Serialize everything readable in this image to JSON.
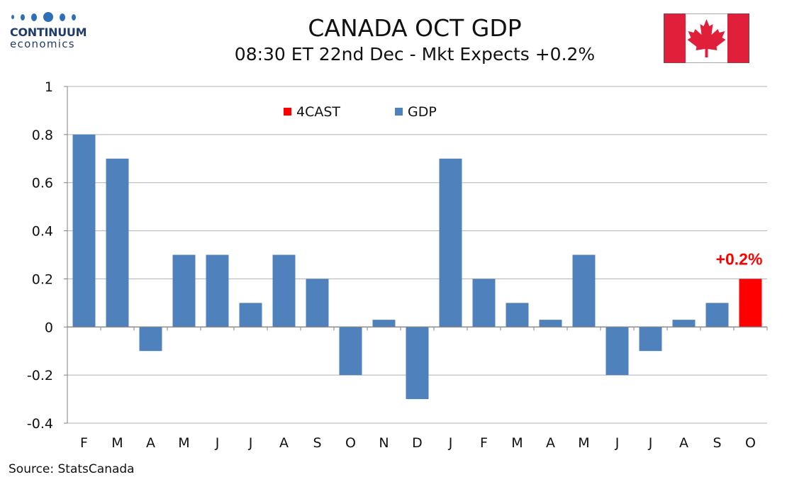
{
  "logo": {
    "brand": "CONTINUUM",
    "sub": "economics"
  },
  "header": {
    "title": "CANADA OCT GDP",
    "subtitle": "08:30 ET 22nd Dec - Mkt Expects +0.2%"
  },
  "flag": {
    "icon": "canada-flag-icon",
    "red": "#e0203a",
    "white": "#ffffff"
  },
  "source": "Source: StatsCanada",
  "colors": {
    "gdp": "#4f81bd",
    "forecast": "#ff0000",
    "grid": "#b0b0b0",
    "axis": "#808080"
  },
  "chart_data": {
    "type": "bar",
    "title": "CANADA OCT GDP",
    "subtitle": "08:30 ET 22nd Dec - Mkt Expects +0.2%",
    "xlabel": "",
    "ylabel": "",
    "ylim": [
      -0.4,
      1
    ],
    "yticks": [
      -0.4,
      -0.2,
      0,
      0.2,
      0.4,
      0.6,
      0.8,
      1
    ],
    "ytick_labels": [
      "-0.4",
      "-0.2",
      "0",
      "0.2",
      "0.4",
      "0.6",
      "0.8",
      "1"
    ],
    "grid": true,
    "legend": {
      "placement": "top-center",
      "entries": [
        "4CAST",
        "GDP"
      ]
    },
    "categories": [
      "F",
      "M",
      "A",
      "M",
      "J",
      "J",
      "A",
      "S",
      "O",
      "N",
      "D",
      "J",
      "F",
      "M",
      "A",
      "M",
      "J",
      "J",
      "A",
      "S",
      "O"
    ],
    "series": [
      {
        "name": "GDP",
        "values": [
          0.8,
          0.7,
          -0.1,
          0.3,
          0.3,
          0.1,
          0.3,
          0.2,
          -0.2,
          0.03,
          -0.3,
          0.7,
          0.2,
          0.1,
          0.03,
          0.3,
          -0.2,
          -0.1,
          0.03,
          0.1,
          null
        ]
      },
      {
        "name": "4CAST",
        "values": [
          null,
          null,
          null,
          null,
          null,
          null,
          null,
          null,
          null,
          null,
          null,
          null,
          null,
          null,
          null,
          null,
          null,
          null,
          null,
          null,
          0.2
        ]
      }
    ],
    "annotations": [
      {
        "text": "+0.2%",
        "category_index": 20,
        "value": 0.2
      }
    ]
  }
}
